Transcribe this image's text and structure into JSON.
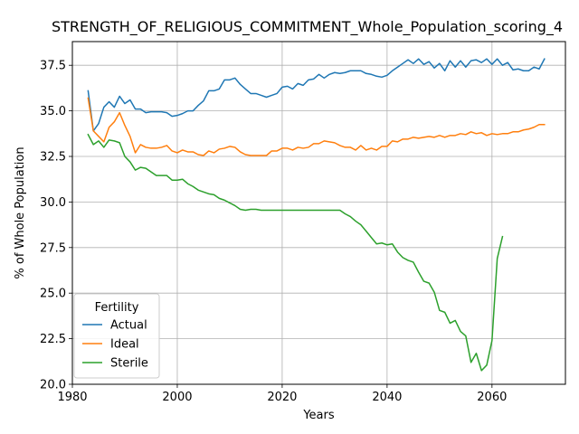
{
  "chart_data": {
    "type": "line",
    "title": "STRENGTH_OF_RELIGIOUS_COMMITMENT_Whole_Population_scoring_4",
    "xlabel": "Years",
    "ylabel": "% of Whole Population",
    "xlim": [
      1980,
      2074
    ],
    "ylim": [
      20.0,
      38.8
    ],
    "xticks": [
      1980,
      2000,
      2020,
      2040,
      2060
    ],
    "yticks": [
      20.0,
      22.5,
      25.0,
      27.5,
      30.0,
      32.5,
      35.0,
      37.5
    ],
    "grid": true,
    "legend": {
      "title": "Fertility",
      "placement": "lower-left"
    },
    "colors": {
      "Actual": "#1f77b4",
      "Ideal": "#ff7f0e",
      "Sterile": "#2ca02c"
    },
    "series": [
      {
        "name": "Actual",
        "x": [
          1983,
          1984,
          1985,
          1986,
          1987,
          1988,
          1989,
          1990,
          1991,
          1992,
          1993,
          1994,
          1995,
          1996,
          1997,
          1998,
          1999,
          2000,
          2001,
          2002,
          2003,
          2004,
          2005,
          2006,
          2007,
          2008,
          2009,
          2010,
          2011,
          2012,
          2013,
          2014,
          2015,
          2016,
          2017,
          2018,
          2019,
          2020,
          2021,
          2022,
          2023,
          2024,
          2025,
          2026,
          2027,
          2028,
          2029,
          2030,
          2031,
          2032,
          2033,
          2034,
          2035,
          2036,
          2037,
          2038,
          2039,
          2040,
          2041,
          2042,
          2043,
          2044,
          2045,
          2046,
          2047,
          2048,
          2049,
          2050,
          2051,
          2052,
          2053,
          2054,
          2055,
          2056,
          2057,
          2058,
          2059,
          2060,
          2061,
          2062,
          2063,
          2064,
          2065,
          2066,
          2067,
          2068,
          2069,
          2070
        ],
        "y": [
          36.1,
          33.9,
          34.3,
          35.2,
          35.5,
          35.2,
          35.8,
          35.4,
          35.6,
          35.1,
          35.1,
          34.9,
          34.95,
          34.95,
          34.95,
          34.9,
          34.7,
          34.75,
          34.85,
          35.0,
          35.0,
          35.3,
          35.55,
          36.1,
          36.1,
          36.2,
          36.7,
          36.7,
          36.8,
          36.45,
          36.2,
          35.95,
          35.95,
          35.85,
          35.75,
          35.85,
          35.95,
          36.3,
          36.35,
          36.2,
          36.5,
          36.4,
          36.7,
          36.75,
          37.0,
          36.8,
          37.0,
          37.1,
          37.05,
          37.1,
          37.2,
          37.2,
          37.2,
          37.05,
          37.0,
          36.9,
          36.85,
          36.95,
          37.2,
          37.4,
          37.6,
          37.8,
          37.6,
          37.85,
          37.55,
          37.7,
          37.35,
          37.6,
          37.2,
          37.75,
          37.4,
          37.75,
          37.4,
          37.75,
          37.8,
          37.65,
          37.85,
          37.55,
          37.85,
          37.5,
          37.65,
          37.25,
          37.3,
          37.2,
          37.2,
          37.4,
          37.3,
          37.85
        ]
      },
      {
        "name": "Ideal",
        "x": [
          1983,
          1984,
          1985,
          1986,
          1987,
          1988,
          1989,
          1990,
          1991,
          1992,
          1993,
          1994,
          1995,
          1996,
          1997,
          1998,
          1999,
          2000,
          2001,
          2002,
          2003,
          2004,
          2005,
          2006,
          2007,
          2008,
          2009,
          2010,
          2011,
          2012,
          2013,
          2014,
          2015,
          2016,
          2017,
          2018,
          2019,
          2020,
          2021,
          2022,
          2023,
          2024,
          2025,
          2026,
          2027,
          2028,
          2029,
          2030,
          2031,
          2032,
          2033,
          2034,
          2035,
          2036,
          2037,
          2038,
          2039,
          2040,
          2041,
          2042,
          2043,
          2044,
          2045,
          2046,
          2047,
          2048,
          2049,
          2050,
          2051,
          2052,
          2053,
          2054,
          2055,
          2056,
          2057,
          2058,
          2059,
          2060,
          2061,
          2062,
          2063,
          2064,
          2065,
          2066,
          2067,
          2068,
          2069,
          2070
        ],
        "y": [
          35.7,
          33.9,
          33.6,
          33.3,
          34.1,
          34.4,
          34.9,
          34.2,
          33.6,
          32.7,
          33.15,
          33.0,
          32.95,
          32.95,
          33.0,
          33.1,
          32.8,
          32.7,
          32.85,
          32.75,
          32.75,
          32.6,
          32.55,
          32.8,
          32.7,
          32.9,
          32.95,
          33.05,
          33.0,
          32.75,
          32.6,
          32.55,
          32.55,
          32.55,
          32.55,
          32.8,
          32.8,
          32.95,
          32.95,
          32.85,
          33.0,
          32.95,
          33.0,
          33.2,
          33.2,
          33.35,
          33.3,
          33.25,
          33.1,
          33.0,
          33.0,
          32.85,
          33.1,
          32.85,
          32.95,
          32.85,
          33.05,
          33.05,
          33.35,
          33.3,
          33.45,
          33.45,
          33.55,
          33.5,
          33.55,
          33.6,
          33.55,
          33.65,
          33.55,
          33.65,
          33.65,
          33.75,
          33.7,
          33.85,
          33.75,
          33.8,
          33.65,
          33.75,
          33.7,
          33.75,
          33.75,
          33.85,
          33.85,
          33.95,
          34.0,
          34.1,
          34.25,
          34.25
        ]
      },
      {
        "name": "Sterile",
        "x": [
          1983,
          1984,
          1985,
          1986,
          1987,
          1988,
          1989,
          1990,
          1991,
          1992,
          1993,
          1994,
          1995,
          1996,
          1997,
          1998,
          1999,
          2000,
          2001,
          2002,
          2003,
          2004,
          2005,
          2006,
          2007,
          2008,
          2009,
          2010,
          2011,
          2012,
          2013,
          2014,
          2015,
          2016,
          2017,
          2018,
          2019,
          2020,
          2021,
          2022,
          2023,
          2024,
          2025,
          2026,
          2027,
          2028,
          2029,
          2030,
          2031,
          2032,
          2033,
          2034,
          2035,
          2036,
          2037,
          2038,
          2039,
          2040,
          2041,
          2042,
          2043,
          2044,
          2045,
          2046,
          2047,
          2048,
          2049,
          2050,
          2051,
          2052,
          2053,
          2054,
          2055,
          2056,
          2057,
          2058,
          2059,
          2060,
          2061,
          2062
        ],
        "y": [
          33.7,
          33.15,
          33.35,
          33.0,
          33.4,
          33.35,
          33.25,
          32.5,
          32.2,
          31.75,
          31.9,
          31.85,
          31.65,
          31.45,
          31.45,
          31.45,
          31.2,
          31.2,
          31.25,
          31.0,
          30.85,
          30.65,
          30.55,
          30.45,
          30.4,
          30.2,
          30.1,
          29.95,
          29.8,
          29.6,
          29.55,
          29.6,
          29.6,
          29.55,
          29.55,
          29.55,
          29.55,
          29.55,
          29.55,
          29.55,
          29.55,
          29.55,
          29.55,
          29.55,
          29.55,
          29.55,
          29.55,
          29.55,
          29.55,
          29.35,
          29.2,
          28.95,
          28.75,
          28.4,
          28.05,
          27.7,
          27.75,
          27.65,
          27.7,
          27.25,
          26.95,
          26.8,
          26.7,
          26.15,
          25.65,
          25.55,
          25.05,
          24.05,
          23.95,
          23.35,
          23.5,
          22.9,
          22.65,
          21.2,
          21.7,
          20.75,
          21.05,
          22.4,
          26.9,
          28.1
        ]
      }
    ]
  }
}
